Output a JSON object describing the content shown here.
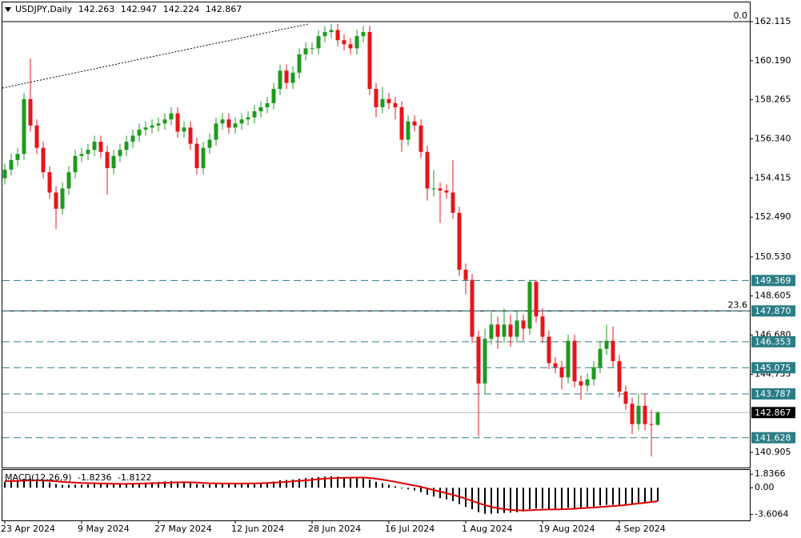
{
  "chart_data": [
    {
      "type": "candlestick",
      "title": "USDJPY,Daily",
      "categories": [
        "23 Apr 2024",
        null,
        null,
        null,
        null,
        null,
        null,
        null,
        null,
        null,
        null,
        null,
        "9 May 2024",
        null,
        null,
        null,
        null,
        null,
        null,
        null,
        null,
        null,
        null,
        null,
        "27 May 2024",
        null,
        null,
        null,
        null,
        null,
        null,
        null,
        null,
        null,
        null,
        null,
        "12 Jun 2024",
        null,
        null,
        null,
        null,
        null,
        null,
        null,
        null,
        null,
        null,
        null,
        "28 Jun 2024",
        null,
        null,
        null,
        null,
        null,
        null,
        null,
        null,
        null,
        null,
        null,
        "16 Jul 2024",
        null,
        null,
        null,
        null,
        null,
        null,
        null,
        null,
        null,
        null,
        null,
        "1 Aug 2024",
        null,
        null,
        null,
        null,
        null,
        null,
        null,
        null,
        null,
        null,
        null,
        "19 Aug 2024",
        null,
        null,
        null,
        null,
        null,
        null,
        null,
        null,
        null,
        null,
        null,
        "4 Sep 2024",
        null,
        null,
        null,
        null,
        null,
        null
      ],
      "open": [
        154.4,
        154.83,
        155.3,
        155.6,
        158.3,
        157.0,
        155.9,
        154.7,
        153.7,
        152.9,
        153.9,
        154.7,
        155.5,
        155.6,
        155.8,
        156.2,
        155.7,
        154.9,
        155.5,
        155.8,
        156.2,
        156.5,
        156.8,
        156.9,
        157.0,
        157.1,
        157.3,
        157.6,
        156.7,
        156.9,
        156.1,
        154.9,
        155.9,
        156.3,
        157.1,
        157.3,
        156.9,
        157.1,
        157.3,
        157.4,
        157.7,
        157.9,
        158.1,
        158.8,
        159.7,
        159.1,
        159.6,
        160.5,
        160.8,
        160.8,
        161.4,
        161.6,
        161.7,
        161.2,
        161.0,
        160.8,
        161.4,
        161.6,
        158.8,
        157.9,
        158.3,
        158.1,
        157.9,
        156.3,
        157.2,
        157.0,
        155.7,
        153.9,
        153.9,
        153.8,
        153.7,
        152.7,
        149.9,
        149.4,
        146.6,
        144.3,
        146.5,
        147.2,
        146.6,
        147.2,
        146.6,
        147.4,
        147.0,
        149.3,
        147.6,
        146.6,
        145.3,
        145.1,
        144.6,
        146.4,
        144.4,
        144.2,
        144.5,
        145.1,
        146.0,
        146.4,
        145.4,
        143.9,
        143.3,
        142.3,
        143.2,
        142.3,
        142.263
      ],
      "high": [
        155.13,
        155.6,
        155.9,
        158.6,
        160.3,
        157.3,
        156.2,
        155.0,
        154.0,
        154.2,
        155.0,
        155.8,
        155.9,
        156.1,
        156.5,
        156.5,
        156.0,
        155.8,
        156.1,
        156.5,
        156.8,
        157.1,
        157.2,
        157.3,
        157.4,
        157.6,
        157.9,
        157.9,
        157.2,
        157.2,
        156.4,
        156.2,
        156.6,
        157.4,
        157.6,
        157.6,
        157.4,
        157.6,
        157.7,
        158.0,
        158.2,
        158.4,
        159.1,
        160.0,
        160.0,
        159.9,
        160.8,
        161.1,
        161.1,
        161.7,
        161.9,
        162.0,
        162.0,
        161.5,
        161.3,
        161.7,
        161.9,
        161.9,
        159.1,
        158.9,
        158.6,
        158.4,
        158.2,
        157.5,
        157.5,
        157.3,
        156.0,
        154.8,
        154.2,
        154.1,
        155.3,
        153.0,
        150.2,
        149.7,
        146.9,
        147.0,
        147.8,
        147.6,
        148.0,
        147.7,
        147.9,
        147.7,
        149.4,
        149.4,
        148.0,
        146.9,
        145.6,
        145.4,
        146.7,
        146.7,
        144.7,
        144.8,
        145.4,
        146.4,
        147.2,
        147.1,
        145.7,
        144.2,
        143.6,
        143.8,
        143.8,
        143.0,
        142.947
      ],
      "low": [
        154.1,
        154.53,
        155.0,
        155.3,
        156.7,
        155.6,
        154.4,
        153.4,
        151.9,
        152.6,
        153.6,
        154.4,
        155.2,
        155.3,
        155.5,
        155.4,
        153.6,
        154.6,
        155.2,
        155.5,
        155.9,
        156.2,
        156.5,
        156.6,
        156.7,
        156.8,
        157.0,
        156.4,
        156.4,
        155.8,
        154.6,
        154.6,
        155.6,
        156.0,
        156.8,
        156.6,
        156.6,
        156.8,
        157.0,
        157.1,
        157.4,
        157.6,
        157.8,
        158.5,
        158.8,
        158.8,
        159.3,
        160.2,
        160.5,
        160.5,
        161.1,
        161.3,
        160.9,
        160.7,
        160.5,
        160.5,
        161.1,
        158.5,
        157.4,
        157.6,
        157.8,
        157.3,
        155.7,
        156.0,
        156.7,
        155.4,
        153.3,
        153.5,
        152.2,
        153.4,
        152.4,
        149.6,
        148.7,
        146.3,
        141.7,
        143.8,
        146.2,
        146.0,
        146.3,
        146.1,
        146.3,
        146.4,
        146.7,
        147.3,
        146.3,
        145.0,
        144.8,
        144.0,
        144.3,
        144.1,
        143.5,
        143.9,
        144.2,
        144.8,
        145.7,
        145.1,
        143.6,
        143.0,
        141.8,
        142.0,
        142.0,
        140.7,
        142.224
      ],
      "close": [
        154.83,
        155.3,
        155.6,
        158.3,
        157.0,
        155.9,
        154.7,
        153.7,
        152.9,
        153.9,
        154.7,
        155.5,
        155.6,
        155.8,
        156.2,
        155.7,
        154.9,
        155.5,
        155.8,
        156.2,
        156.5,
        156.8,
        156.9,
        157.0,
        157.1,
        157.3,
        157.6,
        156.7,
        156.9,
        156.1,
        154.9,
        155.9,
        156.3,
        157.1,
        157.3,
        156.9,
        157.1,
        157.3,
        157.4,
        157.7,
        157.9,
        158.1,
        158.8,
        159.7,
        159.1,
        159.6,
        160.5,
        160.8,
        160.8,
        161.4,
        161.6,
        161.7,
        161.2,
        161.0,
        160.8,
        161.4,
        161.6,
        158.8,
        157.9,
        158.3,
        158.1,
        157.9,
        156.3,
        157.2,
        157.0,
        155.7,
        153.9,
        153.9,
        153.8,
        153.7,
        152.7,
        149.9,
        149.4,
        146.6,
        144.3,
        146.5,
        147.2,
        146.6,
        147.2,
        146.6,
        147.4,
        147.0,
        149.3,
        147.6,
        146.6,
        145.3,
        145.1,
        144.6,
        146.4,
        144.4,
        144.2,
        144.5,
        145.1,
        146.0,
        146.4,
        145.4,
        143.9,
        143.3,
        142.3,
        143.2,
        142.3,
        142.26,
        142.867
      ],
      "up_color": "#1f9a1f",
      "down_color": "#e8141b",
      "level_color": "#2b7d86",
      "ylim": [
        140.16,
        163.1
      ],
      "yticks": [
        162.115,
        {
          "value": 160.19,
          "label": "160.190"
        },
        158.265,
        {
          "value": 156.34,
          "label": "156.340"
        },
        154.415,
        {
          "value": 152.49,
          "label": "152.490"
        },
        {
          "value": 150.53,
          "label": "150.530"
        },
        148.605,
        {
          "value": 146.68,
          "label": "146.680"
        },
        144.755,
        140.905
      ],
      "fib_levels": [
        {
          "value": 162.115,
          "label": "0.0"
        },
        {
          "value": 147.87,
          "label": "23.6"
        }
      ],
      "levels": [
        149.369,
        {
          "value": 147.87,
          "label": "147.870"
        },
        146.353,
        145.075,
        143.787,
        141.628
      ]
    },
    {
      "type": "macd",
      "title": "MACD(12,26,9)",
      "series": [
        {
          "color": "#000000",
          "values": [
            0.8,
            0.9,
            1.0,
            1.2,
            1.2,
            1.1,
            0.9,
            0.7,
            0.5,
            0.4,
            0.4,
            0.4,
            0.4,
            0.45,
            0.5,
            0.5,
            0.45,
            0.45,
            0.5,
            0.55,
            0.6,
            0.65,
            0.7,
            0.75,
            0.8,
            0.85,
            0.9,
            0.85,
            0.8,
            0.7,
            0.5,
            0.45,
            0.45,
            0.5,
            0.55,
            0.55,
            0.55,
            0.6,
            0.6,
            0.65,
            0.7,
            0.75,
            0.85,
            1.0,
            1.05,
            1.1,
            1.2,
            1.3,
            1.35,
            1.45,
            1.5,
            1.55,
            1.5,
            1.45,
            1.4,
            1.4,
            1.4,
            1.1,
            0.8,
            0.6,
            0.4,
            0.2,
            -0.1,
            -0.2,
            -0.35,
            -0.6,
            -0.95,
            -1.2,
            -1.4,
            -1.55,
            -1.8,
            -2.2,
            -2.6,
            -2.9,
            -3.3,
            -3.5,
            -3.5,
            -3.45,
            -3.4,
            -3.35,
            -3.3,
            -3.2,
            -2.9,
            -2.8,
            -2.8,
            -2.85,
            -2.85,
            -2.85,
            -2.7,
            -2.7,
            -2.7,
            -2.65,
            -2.55,
            -2.4,
            -2.3,
            -2.3,
            -2.35,
            -2.2,
            -2.2,
            -2.1,
            -2.0,
            -1.95,
            -1.8236
          ]
        },
        {
          "color": "#e00000",
          "values": [
            0.9,
            0.9,
            0.92,
            0.95,
            1.0,
            1.0,
            0.98,
            0.93,
            0.87,
            0.8,
            0.74,
            0.7,
            0.65,
            0.62,
            0.6,
            0.58,
            0.56,
            0.54,
            0.53,
            0.53,
            0.54,
            0.56,
            0.58,
            0.6,
            0.63,
            0.66,
            0.7,
            0.73,
            0.74,
            0.74,
            0.7,
            0.65,
            0.61,
            0.59,
            0.58,
            0.57,
            0.57,
            0.57,
            0.58,
            0.59,
            0.61,
            0.64,
            0.68,
            0.74,
            0.8,
            0.86,
            0.93,
            1.0,
            1.07,
            1.15,
            1.22,
            1.28,
            1.32,
            1.35,
            1.36,
            1.37,
            1.38,
            1.32,
            1.21,
            1.09,
            0.95,
            0.8,
            0.62,
            0.46,
            0.3,
            0.12,
            -0.09,
            -0.31,
            -0.53,
            -0.73,
            -0.95,
            -1.2,
            -1.48,
            -1.76,
            -2.07,
            -2.35,
            -2.58,
            -2.75,
            -2.88,
            -2.98,
            -3.04,
            -3.07,
            -3.04,
            -2.99,
            -2.95,
            -2.93,
            -2.91,
            -2.9,
            -2.86,
            -2.82,
            -2.77,
            -2.72,
            -2.66,
            -2.6,
            -2.53,
            -2.47,
            -2.4,
            -2.32,
            -2.22,
            -2.12,
            -2.02,
            -1.92,
            -1.8122
          ]
        }
      ],
      "ylim": [
        -4.4,
        2.4
      ],
      "yticks": [
        1.8366,
        {
          "value": 0,
          "label": "0.00"
        },
        -3.6064
      ]
    }
  ]
}
